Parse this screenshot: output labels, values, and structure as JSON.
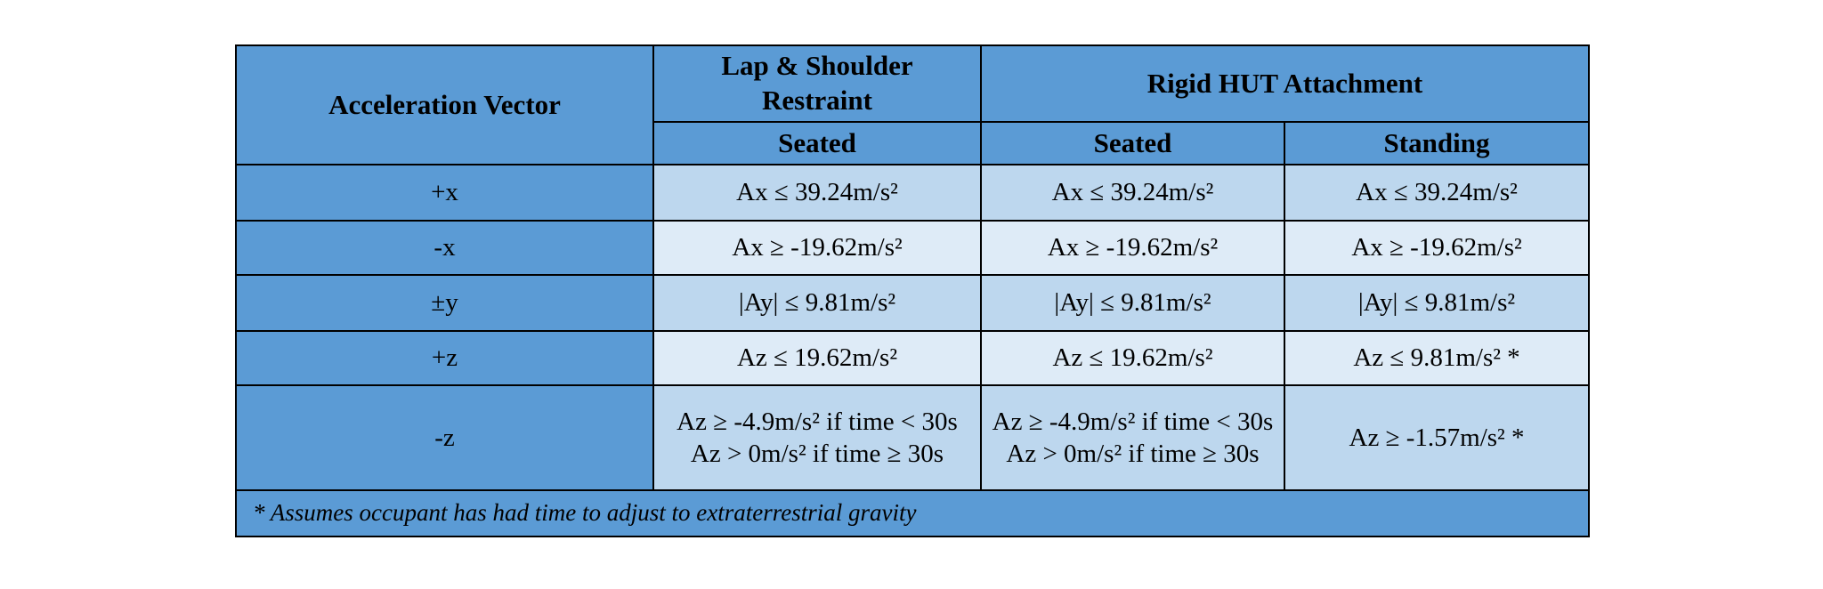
{
  "table": {
    "header": {
      "row_label": "Acceleration Vector",
      "groups": [
        "Lap & Shoulder Restraint",
        "Rigid HUT Attachment"
      ],
      "subheaders": [
        "Seated",
        "Seated",
        "Standing"
      ]
    },
    "rows": [
      [
        "+x",
        "Ax ≤ 39.24m/s²",
        "Ax ≤ 39.24m/s²",
        "Ax ≤ 39.24m/s²"
      ],
      [
        "-x",
        "Ax ≥ -19.62m/s²",
        "Ax ≥ -19.62m/s²",
        "Ax ≥ -19.62m/s²"
      ],
      [
        "±y",
        "|Ay| ≤ 9.81m/s²",
        "|Ay| ≤ 9.81m/s²",
        "|Ay| ≤ 9.81m/s²"
      ],
      [
        "+z",
        "Az ≤ 19.62m/s²",
        "Az ≤ 19.62m/s²",
        "Az ≤ 9.81m/s² *"
      ],
      [
        "-z",
        "Az ≥ -4.9m/s² if time < 30s Az > 0m/s² if time ≥ 30s",
        "Az ≥ -4.9m/s² if time < 30s Az > 0m/s² if time ≥ 30s",
        "Az ≥ -1.57m/s² *"
      ]
    ],
    "footnote": "* Assumes occupant has had time to adjust to extraterrestrial gravity"
  }
}
